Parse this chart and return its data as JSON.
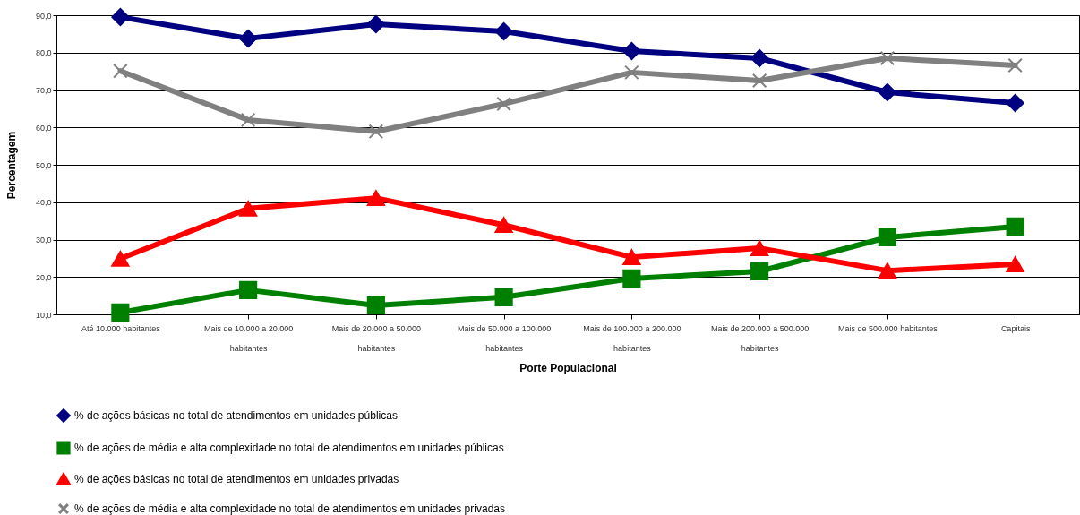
{
  "chart_data": {
    "type": "line",
    "xlabel": "Porte Populacional",
    "ylabel": "Percentagem",
    "categories": [
      "Até 10.000 habitantes",
      "Mais de 10.000 a 20.000 habitantes",
      "Mais de 20.000 a 50.000 habitantes",
      "Mais de 50.000 a 100.000 habitantes",
      "Mais de 100.000 a 200.000 habitantes",
      "Mais de 200.000 a 500.000 habitantes",
      "Mais de 500.000 habitantes",
      "Capitais"
    ],
    "series": [
      {
        "name": "% de ações básicas no total de atendimentos em unidades públicas",
        "color": "#000080",
        "marker": "diamond",
        "values": [
          89.5,
          83.8,
          87.6,
          85.7,
          80.4,
          78.5,
          69.4,
          66.5
        ]
      },
      {
        "name": "% de ações de média e alta complexidade no total de atendimentos em unidades públicas",
        "color": "#008000",
        "marker": "square",
        "values": [
          10.5,
          16.5,
          12.4,
          14.6,
          19.6,
          21.5,
          30.6,
          33.5
        ]
      },
      {
        "name": "% de ações básicas no total de atendimentos em unidades privadas",
        "color": "#ff0000",
        "marker": "triangle",
        "values": [
          24.9,
          38.3,
          41.1,
          33.9,
          25.3,
          27.7,
          21.7,
          23.4
        ]
      },
      {
        "name": "% de ações de média e alta complexidade no total de atendimentos em unidades privadas",
        "color": "#808080",
        "marker": "cross",
        "values": [
          75.1,
          62.0,
          58.9,
          66.3,
          74.7,
          72.5,
          78.5,
          76.6
        ]
      }
    ],
    "ylim": [
      10,
      90
    ],
    "yticks": [
      {
        "value": 10,
        "label": "10,0"
      },
      {
        "value": 20,
        "label": "20,0"
      },
      {
        "value": 30,
        "label": "30,0"
      },
      {
        "value": 40,
        "label": "40,0"
      },
      {
        "value": 50,
        "label": "50,0"
      },
      {
        "value": 60,
        "label": "60,0"
      },
      {
        "value": 70,
        "label": "70,0"
      },
      {
        "value": 80,
        "label": "80,0"
      },
      {
        "value": 90,
        "label": "90,0"
      }
    ],
    "grid": "y",
    "legend": "bottom",
    "line_style": "solid"
  }
}
